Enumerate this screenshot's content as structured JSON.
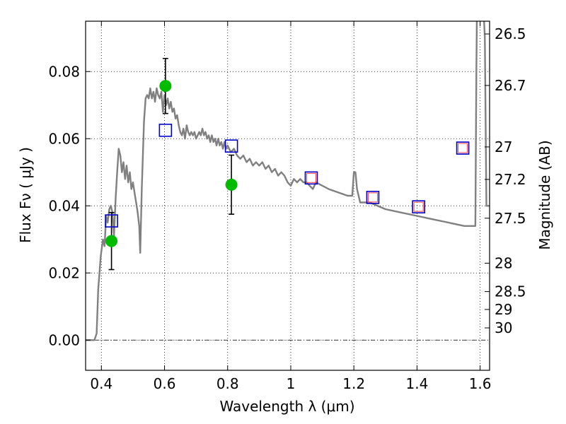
{
  "chart_data": {
    "type": "scatter",
    "xlabel": "Wavelength  λ (μm)",
    "ylabel": "Flux  Fν  ( μJy )",
    "y2label": "Magnitude (AB)",
    "xlim": [
      0.35,
      1.63
    ],
    "ylim": [
      -0.009,
      0.095
    ],
    "grid": true,
    "colors": {
      "template": "#808080",
      "observed": "#00bb00",
      "model_square": "#0000cc",
      "inner_square": "#ff4444",
      "errorbar": "#000000"
    },
    "x_ticks": [
      {
        "value": 0.4,
        "label": "0.4"
      },
      {
        "value": 0.6,
        "label": "0.6"
      },
      {
        "value": 0.8,
        "label": "0.8"
      },
      {
        "value": 1.0,
        "label": "1"
      },
      {
        "value": 1.2,
        "label": "1.2"
      },
      {
        "value": 1.4,
        "label": "1.4"
      },
      {
        "value": 1.6,
        "label": "1.6"
      }
    ],
    "y_ticks": [
      {
        "value": 0.0,
        "label": "0.00"
      },
      {
        "value": 0.02,
        "label": "0.02"
      },
      {
        "value": 0.04,
        "label": "0.04"
      },
      {
        "value": 0.06,
        "label": "0.06"
      },
      {
        "value": 0.08,
        "label": "0.08"
      }
    ],
    "mag_ticks": [
      {
        "mag": 26.5,
        "label": "26.5"
      },
      {
        "mag": 26.7,
        "label": "26.7"
      },
      {
        "mag": 27.0,
        "label": "27"
      },
      {
        "mag": 27.2,
        "label": "27.2"
      },
      {
        "mag": 27.5,
        "label": "27.5"
      },
      {
        "mag": 28.0,
        "label": "28"
      },
      {
        "mag": 28.5,
        "label": "28.5"
      },
      {
        "mag": 29.0,
        "label": "29"
      },
      {
        "mag": 30.0,
        "label": "30"
      }
    ],
    "template_spectrum": [
      [
        0.35,
        0.0
      ],
      [
        0.378,
        0.0
      ],
      [
        0.385,
        0.002
      ],
      [
        0.39,
        0.015
      ],
      [
        0.398,
        0.025
      ],
      [
        0.405,
        0.03
      ],
      [
        0.41,
        0.028
      ],
      [
        0.415,
        0.037
      ],
      [
        0.42,
        0.035
      ],
      [
        0.425,
        0.039
      ],
      [
        0.43,
        0.04
      ],
      [
        0.435,
        0.038
      ],
      [
        0.44,
        0.031
      ],
      [
        0.445,
        0.042
      ],
      [
        0.45,
        0.05
      ],
      [
        0.455,
        0.057
      ],
      [
        0.46,
        0.055
      ],
      [
        0.465,
        0.05
      ],
      [
        0.47,
        0.053
      ],
      [
        0.475,
        0.048
      ],
      [
        0.48,
        0.052
      ],
      [
        0.485,
        0.047
      ],
      [
        0.49,
        0.05
      ],
      [
        0.495,
        0.045
      ],
      [
        0.5,
        0.047
      ],
      [
        0.505,
        0.044
      ],
      [
        0.51,
        0.041
      ],
      [
        0.515,
        0.038
      ],
      [
        0.52,
        0.034
      ],
      [
        0.523,
        0.026
      ],
      [
        0.528,
        0.045
      ],
      [
        0.535,
        0.065
      ],
      [
        0.54,
        0.072
      ],
      [
        0.545,
        0.073
      ],
      [
        0.55,
        0.072
      ],
      [
        0.555,
        0.075
      ],
      [
        0.56,
        0.072
      ],
      [
        0.565,
        0.074
      ],
      [
        0.57,
        0.071
      ],
      [
        0.575,
        0.075
      ],
      [
        0.58,
        0.073
      ],
      [
        0.585,
        0.072
      ],
      [
        0.59,
        0.074
      ],
      [
        0.595,
        0.068
      ],
      [
        0.6,
        0.073
      ],
      [
        0.605,
        0.07
      ],
      [
        0.61,
        0.072
      ],
      [
        0.615,
        0.069
      ],
      [
        0.62,
        0.071
      ],
      [
        0.625,
        0.068
      ],
      [
        0.63,
        0.069
      ],
      [
        0.635,
        0.066
      ],
      [
        0.64,
        0.067
      ],
      [
        0.645,
        0.064
      ],
      [
        0.65,
        0.062
      ],
      [
        0.655,
        0.061
      ],
      [
        0.66,
        0.063
      ],
      [
        0.665,
        0.06
      ],
      [
        0.67,
        0.064
      ],
      [
        0.675,
        0.062
      ],
      [
        0.68,
        0.061
      ],
      [
        0.685,
        0.062
      ],
      [
        0.69,
        0.061
      ],
      [
        0.695,
        0.062
      ],
      [
        0.7,
        0.06
      ],
      [
        0.705,
        0.061
      ],
      [
        0.71,
        0.062
      ],
      [
        0.715,
        0.061
      ],
      [
        0.72,
        0.063
      ],
      [
        0.725,
        0.061
      ],
      [
        0.73,
        0.062
      ],
      [
        0.735,
        0.06
      ],
      [
        0.74,
        0.061
      ],
      [
        0.745,
        0.059
      ],
      [
        0.75,
        0.061
      ],
      [
        0.755,
        0.059
      ],
      [
        0.76,
        0.06
      ],
      [
        0.765,
        0.058
      ],
      [
        0.77,
        0.06
      ],
      [
        0.775,
        0.058
      ],
      [
        0.78,
        0.059
      ],
      [
        0.785,
        0.057
      ],
      [
        0.79,
        0.059
      ],
      [
        0.795,
        0.057
      ],
      [
        0.8,
        0.058
      ],
      [
        0.81,
        0.056
      ],
      [
        0.82,
        0.057
      ],
      [
        0.83,
        0.055
      ],
      [
        0.84,
        0.054
      ],
      [
        0.85,
        0.055
      ],
      [
        0.86,
        0.053
      ],
      [
        0.87,
        0.054
      ],
      [
        0.88,
        0.052
      ],
      [
        0.89,
        0.053
      ],
      [
        0.9,
        0.052
      ],
      [
        0.91,
        0.053
      ],
      [
        0.92,
        0.051
      ],
      [
        0.93,
        0.052
      ],
      [
        0.94,
        0.05
      ],
      [
        0.95,
        0.051
      ],
      [
        0.96,
        0.049
      ],
      [
        0.97,
        0.05
      ],
      [
        0.98,
        0.049
      ],
      [
        0.99,
        0.047
      ],
      [
        1.0,
        0.046
      ],
      [
        1.01,
        0.048
      ],
      [
        1.02,
        0.047
      ],
      [
        1.03,
        0.048
      ],
      [
        1.04,
        0.047
      ],
      [
        1.05,
        0.047
      ],
      [
        1.06,
        0.046
      ],
      [
        1.07,
        0.045
      ],
      [
        1.08,
        0.047
      ],
      [
        1.1,
        0.046
      ],
      [
        1.12,
        0.045
      ],
      [
        1.15,
        0.044
      ],
      [
        1.18,
        0.043
      ],
      [
        1.195,
        0.043
      ],
      [
        1.2,
        0.05
      ],
      [
        1.205,
        0.05
      ],
      [
        1.21,
        0.045
      ],
      [
        1.22,
        0.041
      ],
      [
        1.25,
        0.041
      ],
      [
        1.3,
        0.039
      ],
      [
        1.35,
        0.038
      ],
      [
        1.4,
        0.037
      ],
      [
        1.45,
        0.036
      ],
      [
        1.5,
        0.035
      ],
      [
        1.55,
        0.034
      ],
      [
        1.585,
        0.034
      ],
      [
        1.588,
        0.08
      ],
      [
        1.59,
        0.1
      ],
      [
        1.61,
        0.1
      ],
      [
        1.615,
        0.09
      ],
      [
        1.62,
        0.04
      ],
      [
        1.63,
        0.04
      ]
    ],
    "observed_points": [
      {
        "x": 0.432,
        "y": 0.0295,
        "yerr_low": 0.0085,
        "yerr_high": 0.0085
      },
      {
        "x": 0.603,
        "y": 0.0757,
        "yerr_low": 0.0082,
        "yerr_high": 0.0082
      },
      {
        "x": 0.812,
        "y": 0.0463,
        "yerr_low": 0.0088,
        "yerr_high": 0.0088
      }
    ],
    "model_points": [
      {
        "x": 0.432,
        "y": 0.0355,
        "inner": false
      },
      {
        "x": 0.603,
        "y": 0.0625,
        "inner": false
      },
      {
        "x": 0.812,
        "y": 0.0578,
        "inner": false
      },
      {
        "x": 1.065,
        "y": 0.0483,
        "inner": true
      },
      {
        "x": 1.26,
        "y": 0.0425,
        "inner": true
      },
      {
        "x": 1.405,
        "y": 0.0397,
        "inner": true
      },
      {
        "x": 1.545,
        "y": 0.0572,
        "inner": true
      }
    ]
  }
}
